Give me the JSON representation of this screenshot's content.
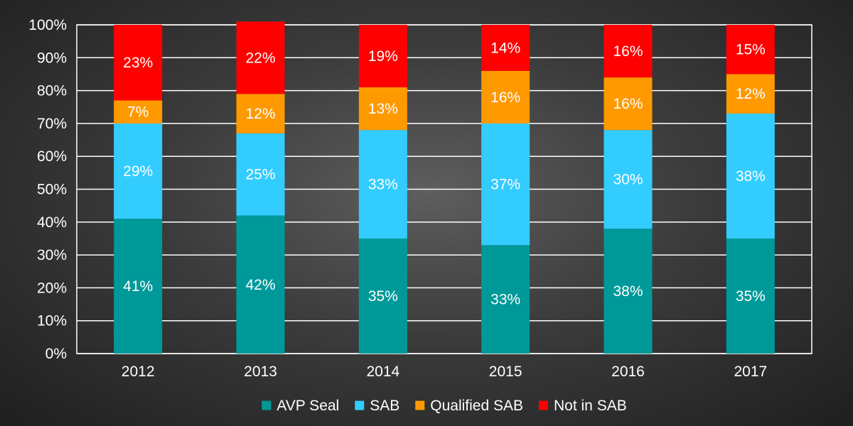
{
  "chart_data": {
    "type": "bar",
    "stacked": true,
    "percent": true,
    "categories": [
      "2012",
      "2013",
      "2014",
      "2015",
      "2016",
      "2017"
    ],
    "series": [
      {
        "name": "AVP Seal",
        "color": "#009999",
        "values": [
          41,
          42,
          35,
          33,
          38,
          35
        ],
        "labels": [
          "41%",
          "42%",
          "35%",
          "33%",
          "38%",
          "35%"
        ]
      },
      {
        "name": "SAB",
        "color": "#33ccff",
        "values": [
          29,
          25,
          33,
          37,
          30,
          38
        ],
        "labels": [
          "29%",
          "25%",
          "33%",
          "37%",
          "30%",
          "38%"
        ]
      },
      {
        "name": "Qualified SAB",
        "color": "#ff9900",
        "values": [
          7,
          12,
          13,
          16,
          16,
          12
        ],
        "labels": [
          "7%",
          "12%",
          "13%",
          "16%",
          "16%",
          "12%"
        ]
      },
      {
        "name": "Not in SAB",
        "color": "#ff0000",
        "values": [
          23,
          22,
          19,
          14,
          16,
          15
        ],
        "labels": [
          "23%",
          "22%",
          "19%",
          "14%",
          "16%",
          "15%"
        ]
      }
    ],
    "yticks": [
      "0%",
      "10%",
      "20%",
      "30%",
      "40%",
      "50%",
      "60%",
      "70%",
      "80%",
      "90%",
      "100%"
    ],
    "ylim": [
      0,
      100
    ],
    "grid": true,
    "legend": "bottom",
    "title": "",
    "xlabel": "",
    "ylabel": ""
  }
}
